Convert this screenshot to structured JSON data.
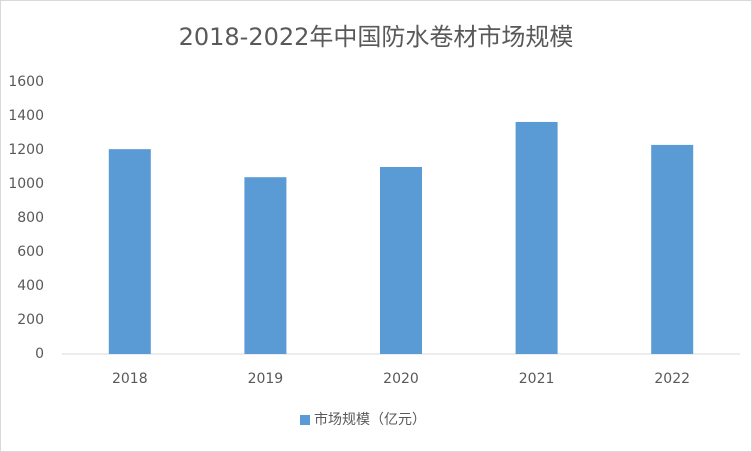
{
  "chart_data": {
    "type": "bar",
    "title": "2018-2022年中国防水卷材市场规模",
    "categories": [
      "2018",
      "2019",
      "2020",
      "2021",
      "2022"
    ],
    "series": [
      {
        "name": "市场规模（亿元）",
        "color": "#5b9bd5",
        "values": [
          1205,
          1040,
          1100,
          1365,
          1230
        ]
      }
    ],
    "ylim": [
      0,
      1600
    ],
    "yticks": [
      0,
      200,
      400,
      600,
      800,
      1000,
      1200,
      1400,
      1600
    ],
    "grid": false,
    "legend": "bottom"
  }
}
